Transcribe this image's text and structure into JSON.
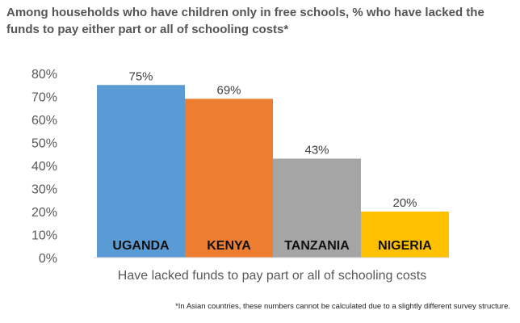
{
  "chart_data": {
    "type": "bar",
    "title": "Among households who have children only in free schools, % who have lacked the funds to pay either part or all of schooling costs*",
    "categories": [
      "UGANDA",
      "KENYA",
      "TANZANIA",
      "NIGERIA"
    ],
    "values": [
      75,
      69,
      43,
      20
    ],
    "data_labels": [
      "75%",
      "69%",
      "43%",
      "20%"
    ],
    "colors": [
      "#5B9BD5",
      "#ED7D31",
      "#A5A5A5",
      "#FFC000"
    ],
    "xlabel": "Have lacked funds to pay part or all of schooling costs",
    "ylabel": "",
    "ylim": [
      0,
      80
    ],
    "yticks": [
      0,
      10,
      20,
      30,
      40,
      50,
      60,
      70,
      80
    ],
    "ytick_labels": [
      "0%",
      "10%",
      "20%",
      "30%",
      "40%",
      "50%",
      "60%",
      "70%",
      "80%"
    ],
    "grid": false,
    "legend": "none"
  },
  "footnote": "*In Asian countries, these numbers cannot be calculated due to a slightly different survey structure."
}
